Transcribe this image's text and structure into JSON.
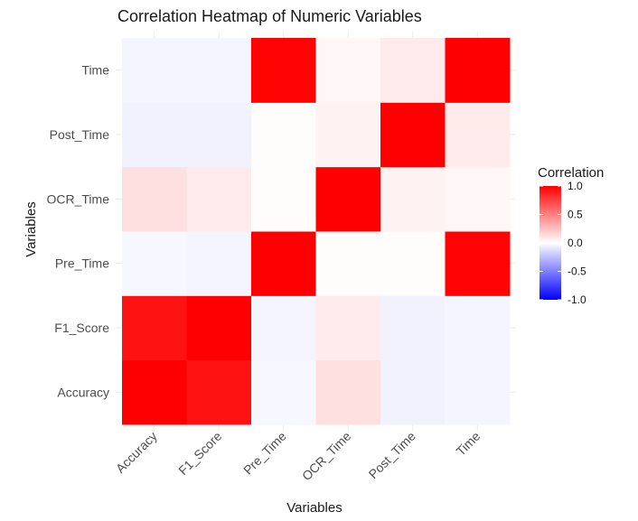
{
  "chart_data": {
    "type": "heatmap",
    "title": "Correlation Heatmap of Numeric Variables",
    "xlabel": "Variables",
    "ylabel": "Variables",
    "x_categories": [
      "Accuracy",
      "F1_Score",
      "Pre_Time",
      "OCR_Time",
      "Post_Time",
      "Time"
    ],
    "y_categories": [
      "Accuracy",
      "F1_Score",
      "Pre_Time",
      "OCR_Time",
      "Post_Time",
      "Time"
    ],
    "values": [
      [
        1.0,
        0.93,
        -0.03,
        0.12,
        -0.05,
        -0.04
      ],
      [
        0.93,
        1.0,
        -0.04,
        0.08,
        -0.05,
        -0.04
      ],
      [
        -0.03,
        -0.04,
        1.0,
        0.01,
        0.01,
        0.99
      ],
      [
        0.12,
        0.08,
        0.01,
        1.0,
        0.05,
        0.03
      ],
      [
        -0.05,
        -0.05,
        0.01,
        0.05,
        1.0,
        0.08
      ],
      [
        -0.04,
        -0.04,
        0.99,
        0.03,
        0.08,
        1.0
      ]
    ],
    "color_scale": {
      "low": "#0000FF",
      "mid": "#FFFFFF",
      "high": "#FF0000",
      "min": -1.0,
      "max": 1.0
    },
    "legend": {
      "title": "Correlation",
      "ticks": [
        1.0,
        0.5,
        0.0,
        -0.5,
        -1.0
      ],
      "tick_labels": [
        "1.0",
        "0.5",
        "0.0",
        "-0.5",
        "-1.0"
      ],
      "position": "right"
    },
    "grid": true
  }
}
